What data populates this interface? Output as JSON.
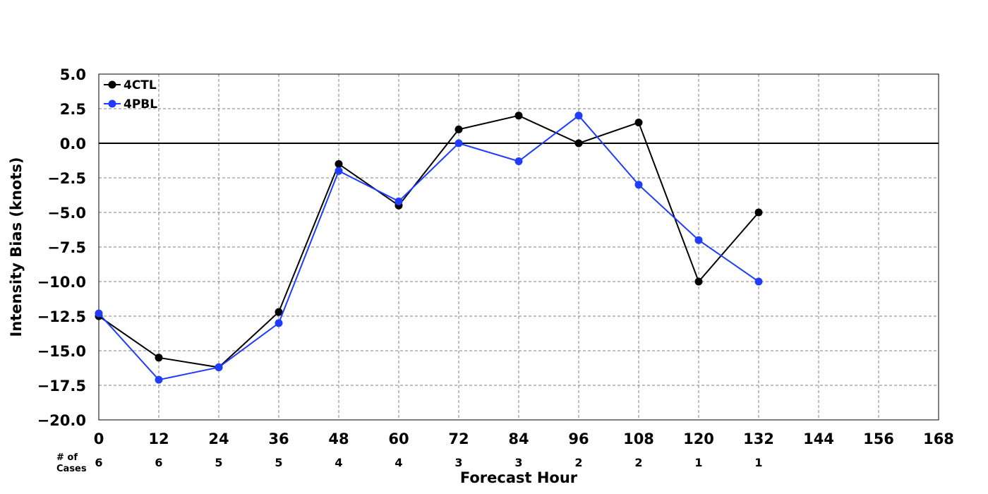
{
  "chart_data": {
    "type": "line",
    "title": "",
    "xlabel": "Forecast Hour",
    "ylabel": "Intensity Bias (knots)",
    "xlim": [
      0,
      168
    ],
    "ylim": [
      -20.0,
      5.0
    ],
    "x_ticks": [
      0,
      12,
      24,
      36,
      48,
      60,
      72,
      84,
      96,
      108,
      120,
      132,
      144,
      156,
      168
    ],
    "y_ticks": [
      5.0,
      2.5,
      0.0,
      -2.5,
      -5.0,
      -7.5,
      -10.0,
      -12.5,
      -15.0,
      -17.5,
      -20.0
    ],
    "grid": true,
    "legend_position": "top-left",
    "zero_line": true,
    "cases_label_line1": "# of",
    "cases_label_line2": "Cases",
    "case_counts": [
      {
        "x": 0,
        "n": "6"
      },
      {
        "x": 12,
        "n": "6"
      },
      {
        "x": 24,
        "n": "5"
      },
      {
        "x": 36,
        "n": "5"
      },
      {
        "x": 48,
        "n": "4"
      },
      {
        "x": 60,
        "n": "4"
      },
      {
        "x": 72,
        "n": "3"
      },
      {
        "x": 84,
        "n": "3"
      },
      {
        "x": 96,
        "n": "2"
      },
      {
        "x": 108,
        "n": "2"
      },
      {
        "x": 120,
        "n": "1"
      },
      {
        "x": 132,
        "n": "1"
      }
    ],
    "series": [
      {
        "name": "4CTL",
        "color": "#000000",
        "x": [
          0,
          12,
          24,
          36,
          48,
          60,
          72,
          84,
          96,
          108,
          120,
          132
        ],
        "values": [
          -12.5,
          -15.5,
          -16.2,
          -12.2,
          -1.5,
          -4.5,
          1.0,
          2.0,
          0.0,
          1.5,
          -10.0,
          -5.0
        ]
      },
      {
        "name": "4PBL",
        "color": "#1f3cff",
        "x": [
          0,
          12,
          24,
          36,
          48,
          60,
          72,
          84,
          96,
          108,
          120,
          132
        ],
        "values": [
          -12.3,
          -17.1,
          -16.2,
          -13.0,
          -2.0,
          -4.2,
          0.0,
          -1.3,
          2.0,
          -3.0,
          -7.0,
          -10.0
        ]
      }
    ]
  }
}
